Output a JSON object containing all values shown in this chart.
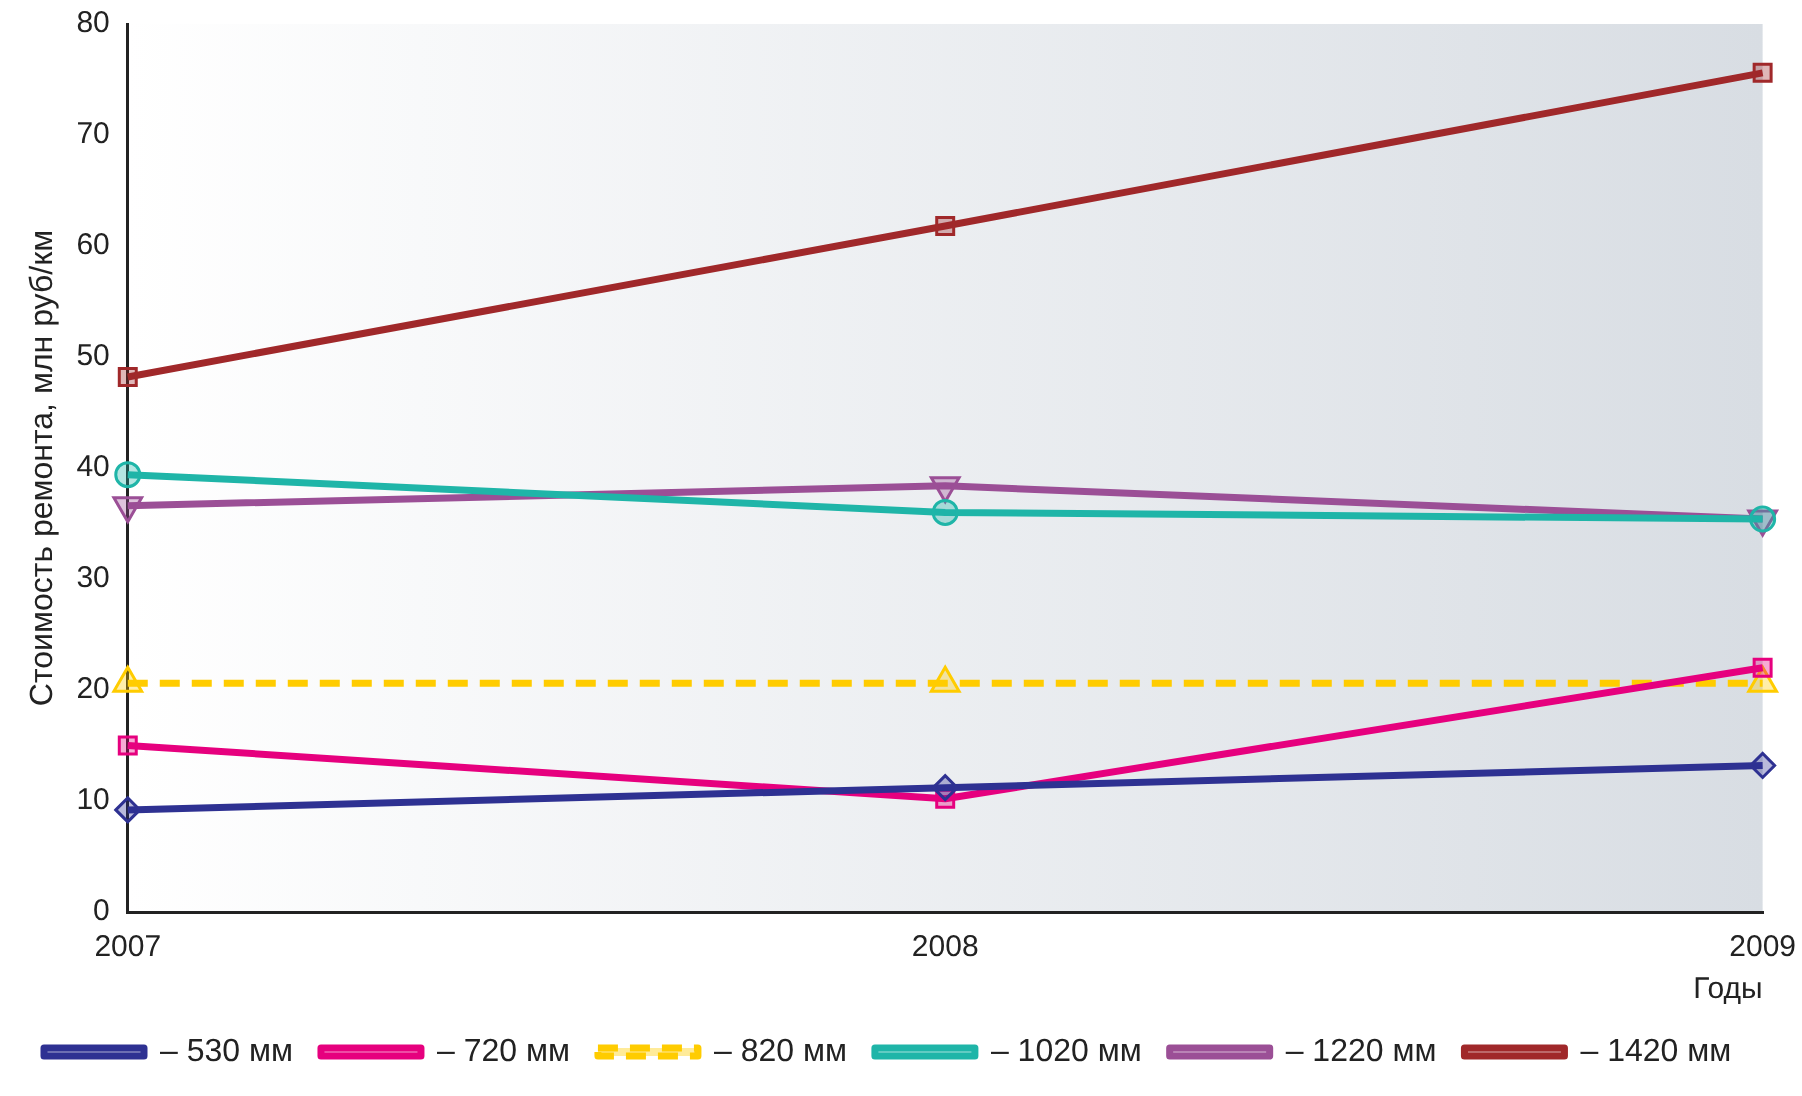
{
  "chart_data": {
    "type": "line",
    "ylabel": "Стоимость ремонта, млн руб/км",
    "xlabel": "Годы",
    "categories": [
      "2007",
      "2008",
      "2009"
    ],
    "ylim": [
      0,
      80
    ],
    "yticks": [
      0,
      10,
      20,
      30,
      40,
      50,
      60,
      70,
      80
    ],
    "grid": false,
    "legend": "bottom",
    "series": [
      {
        "name": "– 530 мм",
        "color": "#2e3192",
        "marker": "diamond",
        "values": [
          9.2,
          11.2,
          13.2
        ]
      },
      {
        "name": "– 720 мм",
        "color": "#e6007e",
        "marker": "square",
        "values": [
          15,
          10.2,
          22
        ]
      },
      {
        "name": "– 820 мм",
        "color": "#ffcc00",
        "marker": "triangle",
        "line_style": "dashed",
        "values": [
          20.6,
          20.6,
          20.6
        ]
      },
      {
        "name": "– 1020 мм",
        "color": "#1fb5a8",
        "marker": "circle",
        "values": [
          39.4,
          36,
          35.4
        ]
      },
      {
        "name": "– 1220 мм",
        "color": "#9b4f96",
        "marker": "triangle-down",
        "values": [
          36.6,
          38.4,
          35.4
        ]
      },
      {
        "name": "– 1420 мм",
        "color": "#a0282a",
        "marker": "square",
        "values": [
          48.2,
          61.8,
          75.6
        ]
      }
    ]
  }
}
